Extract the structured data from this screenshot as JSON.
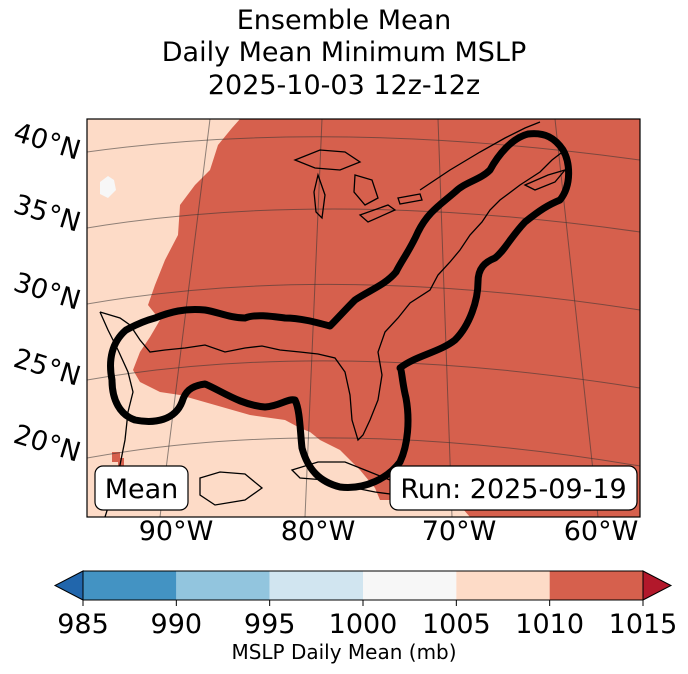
{
  "title": {
    "line1": "Ensemble Mean",
    "line2": "Daily Mean Minimum MSLP",
    "line3": "2025-10-03 12z-12z"
  },
  "map": {
    "lat_labels": [
      "40°N",
      "35°N",
      "30°N",
      "25°N",
      "20°N"
    ],
    "lon_labels": [
      "90°W",
      "80°W",
      "70°W",
      "60°W"
    ],
    "mean_box": "Mean",
    "run_box": "Run: 2025-09-19",
    "colors": {
      "bin_1000_1005": "#f7f7f7",
      "bin_1005_1010": "#fddbc7",
      "bin_1010_1015": "#d6604d",
      "outline": "#000000"
    }
  },
  "colorbar": {
    "label": "MSLP Daily Mean (mb)",
    "ticks": [
      "985",
      "990",
      "995",
      "1000",
      "1005",
      "1010",
      "1015"
    ],
    "bins": [
      {
        "from": 985,
        "to": 990,
        "color": "#4393c3"
      },
      {
        "from": 990,
        "to": 995,
        "color": "#92c5de"
      },
      {
        "from": 995,
        "to": 1000,
        "color": "#d1e5f0"
      },
      {
        "from": 1000,
        "to": 1005,
        "color": "#f7f7f7"
      },
      {
        "from": 1005,
        "to": 1010,
        "color": "#fddbc7"
      },
      {
        "from": 1010,
        "to": 1015,
        "color": "#d6604d"
      }
    ],
    "under_color": "#2166ac",
    "over_color": "#b2182b"
  }
}
